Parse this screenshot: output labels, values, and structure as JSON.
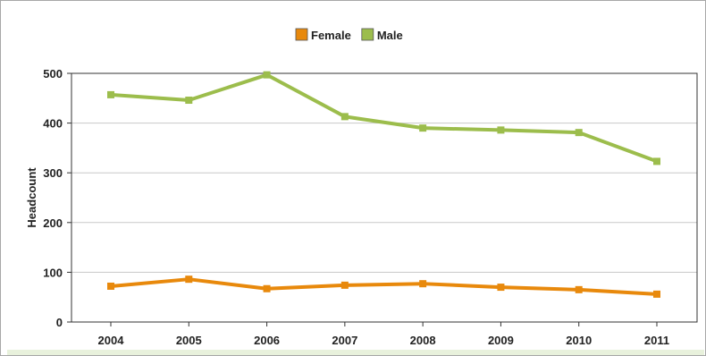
{
  "chart_data": {
    "type": "line",
    "title": "",
    "xlabel": "",
    "ylabel": "Headcount",
    "categories": [
      "2004",
      "2005",
      "2006",
      "2007",
      "2008",
      "2009",
      "2010",
      "2011"
    ],
    "ylim": [
      0,
      500
    ],
    "yticks": [
      0,
      100,
      200,
      300,
      400,
      500
    ],
    "grid": true,
    "legend_position": "top-center",
    "series": [
      {
        "name": "Female",
        "color": "#e8890c",
        "values": [
          72,
          86,
          67,
          74,
          77,
          70,
          65,
          56
        ]
      },
      {
        "name": "Male",
        "color": "#9cbd4c",
        "values": [
          457,
          446,
          497,
          413,
          390,
          386,
          381,
          323
        ]
      }
    ]
  }
}
